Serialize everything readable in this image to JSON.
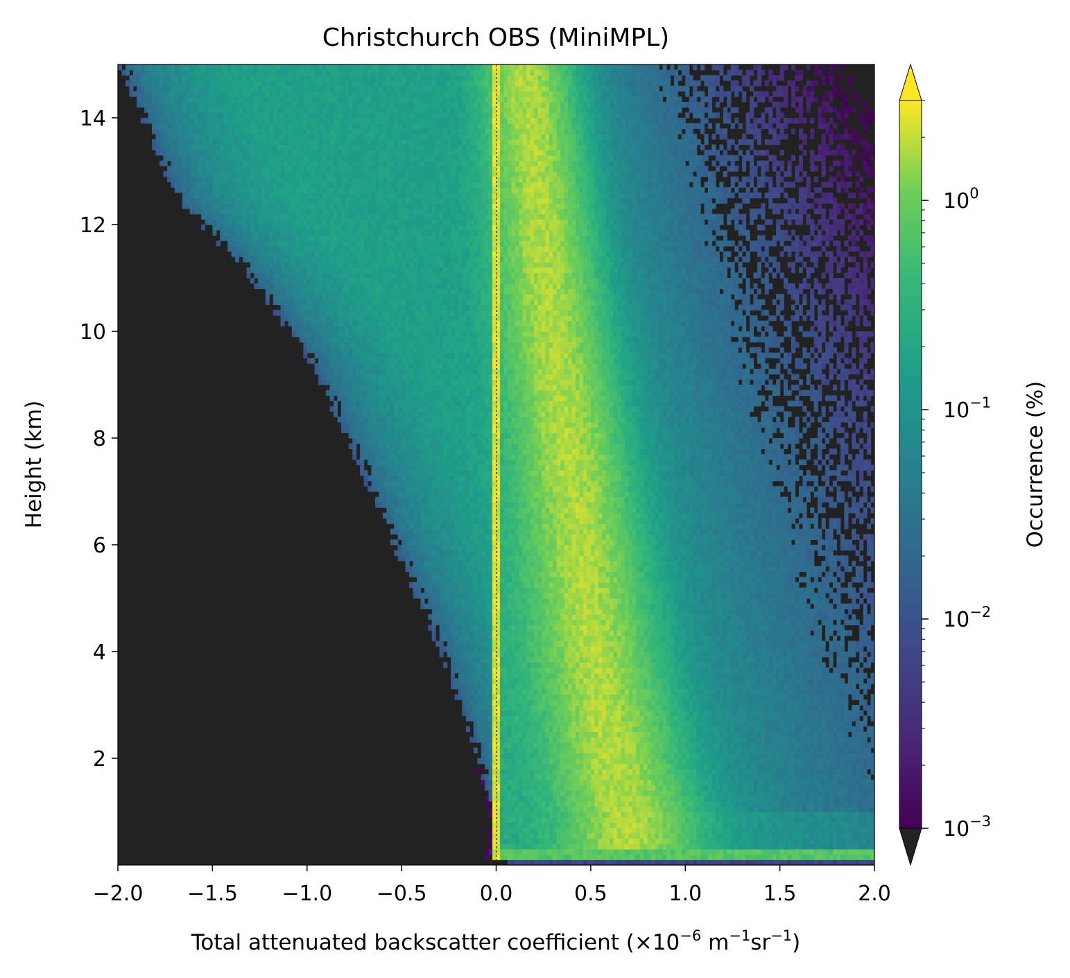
{
  "chart_data": {
    "type": "heatmap",
    "title": "Christchurch OBS (MiniMPL)",
    "xlabel": "Total attenuated backscatter coefficient (×10⁻⁶ m⁻¹sr⁻¹)",
    "xlabel_parts": {
      "main": "Total attenuated backscatter coefficient (×10",
      "exp1": "−6",
      "mid": " m",
      "exp2": "−1",
      "mid2": "sr",
      "exp3": "−1",
      "end": ")"
    },
    "ylabel": "Height (km)",
    "xlim": [
      -2.0,
      2.0
    ],
    "ylim": [
      0.0,
      15.0
    ],
    "xticks": [
      -2.0,
      -1.5,
      -1.0,
      -0.5,
      0.0,
      0.5,
      1.0,
      1.5,
      2.0
    ],
    "xtick_labels": [
      "−2.0",
      "−1.5",
      "−1.0",
      "−0.5",
      "0.0",
      "0.5",
      "1.0",
      "1.5",
      "2.0"
    ],
    "yticks": [
      2,
      4,
      6,
      8,
      10,
      12,
      14
    ],
    "ytick_labels": [
      "2",
      "4",
      "6",
      "8",
      "10",
      "12",
      "14"
    ],
    "colorbar": {
      "label": "Occurrence (%)",
      "scale": "log",
      "range": [
        0.001,
        3.0
      ],
      "ticks": [
        0.001,
        0.01,
        0.1,
        1.0
      ],
      "tick_labels": [
        {
          "base": "10",
          "exp": "−3"
        },
        {
          "base": "10",
          "exp": "−2"
        },
        {
          "base": "10",
          "exp": "−1"
        },
        {
          "base": "10",
          "exp": "0"
        }
      ],
      "extend": "both",
      "colormap": "viridis",
      "under_color": "#222222"
    },
    "missing_color": "#222222",
    "reference_line": {
      "x": 0.0,
      "style": "dashed",
      "color": "#000000"
    },
    "features": {
      "zero_signal_peak": {
        "x": 0.0,
        "occurrence_pct": 3.0
      },
      "molecular_peak": {
        "x": [
          0.7,
          0.62,
          0.52,
          0.45,
          0.38,
          0.3,
          0.24,
          0.2,
          0.17,
          0.15
        ],
        "height": [
          0.9,
          2.0,
          4.0,
          6.0,
          8.0,
          10.0,
          12.0,
          13.5,
          14.5,
          15.0
        ],
        "occurrence_pct": 1.5
      },
      "negative_noise_edge": {
        "x": [
          0.0,
          -0.1,
          -0.3,
          -0.55,
          -0.8,
          -1.0,
          -1.3,
          -1.7,
          -2.0
        ],
        "height": [
          0.8,
          2.0,
          4.0,
          6.0,
          8.0,
          9.5,
          11.0,
          12.5,
          15.0
        ]
      },
      "surface_layer": {
        "height_range": [
          0.15,
          0.3
        ],
        "occurrence_pct": 1.0
      }
    }
  }
}
